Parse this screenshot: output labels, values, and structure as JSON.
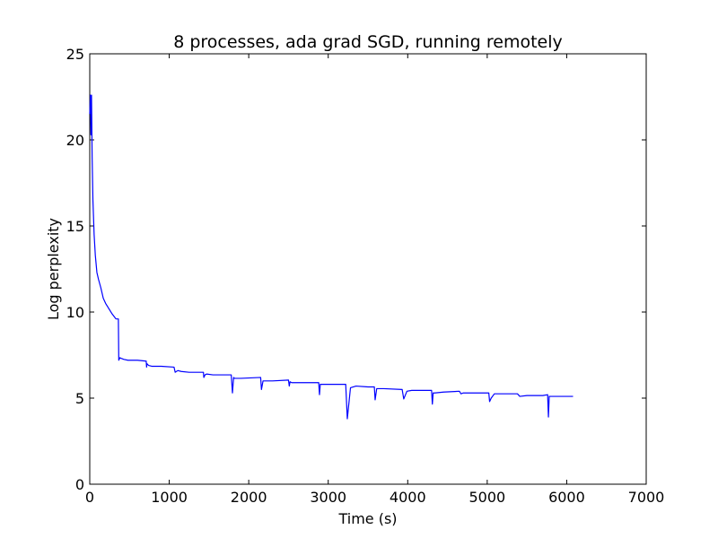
{
  "chart_data": {
    "type": "line",
    "title": "8 processes, ada grad SGD, running remotely",
    "xlabel": "Time (s)",
    "ylabel": "Log perplexity",
    "xlim": [
      0,
      7000
    ],
    "ylim": [
      0,
      25
    ],
    "xticks": [
      0,
      1000,
      2000,
      3000,
      4000,
      5000,
      6000,
      7000
    ],
    "yticks": [
      0,
      5,
      10,
      15,
      20,
      25
    ],
    "grid": false,
    "legend": "none",
    "series": [
      {
        "color": "#0000ff",
        "x": [
          0,
          8,
          15,
          22,
          30,
          40,
          55,
          70,
          90,
          110,
          140,
          170,
          200,
          240,
          280,
          330,
          360,
          365,
          380,
          400,
          430,
          480,
          600,
          710,
          715,
          720,
          740,
          780,
          900,
          1060,
          1075,
          1090,
          1110,
          1150,
          1250,
          1430,
          1435,
          1450,
          1470,
          1550,
          1780,
          1795,
          1810,
          1820,
          1900,
          2150,
          2160,
          2180,
          2300,
          2500,
          2510,
          2520,
          2540,
          2700,
          2880,
          2890,
          2900,
          2910,
          3000,
          3220,
          3240,
          3280,
          3350,
          3500,
          3580,
          3590,
          3610,
          3700,
          3930,
          3950,
          3990,
          4050,
          4300,
          4310,
          4320,
          4340,
          4450,
          4650,
          4670,
          4700,
          5020,
          5030,
          5050,
          5090,
          5200,
          5380,
          5410,
          5500,
          5600,
          5700,
          5760,
          5770,
          5780,
          5850,
          6080
        ],
        "values": [
          21.5,
          22.6,
          20.3,
          22.6,
          19.0,
          16.5,
          14.5,
          13.3,
          12.3,
          11.9,
          11.4,
          10.8,
          10.5,
          10.2,
          9.9,
          9.6,
          9.6,
          7.2,
          7.35,
          7.3,
          7.25,
          7.2,
          7.2,
          7.15,
          6.8,
          7.0,
          6.9,
          6.85,
          6.85,
          6.8,
          6.5,
          6.55,
          6.6,
          6.55,
          6.5,
          6.5,
          6.2,
          6.35,
          6.4,
          6.35,
          6.35,
          5.3,
          6.2,
          6.15,
          6.15,
          6.2,
          5.5,
          6.0,
          6.0,
          6.05,
          5.7,
          5.95,
          5.9,
          5.9,
          5.9,
          5.2,
          5.8,
          5.8,
          5.8,
          5.8,
          3.8,
          5.6,
          5.7,
          5.65,
          5.65,
          4.9,
          5.55,
          5.55,
          5.5,
          4.95,
          5.4,
          5.45,
          5.45,
          4.65,
          5.3,
          5.3,
          5.35,
          5.4,
          5.25,
          5.3,
          5.3,
          4.8,
          5.0,
          5.25,
          5.25,
          5.25,
          5.1,
          5.15,
          5.15,
          5.15,
          5.2,
          3.9,
          5.1,
          5.1,
          5.1
        ]
      }
    ]
  }
}
